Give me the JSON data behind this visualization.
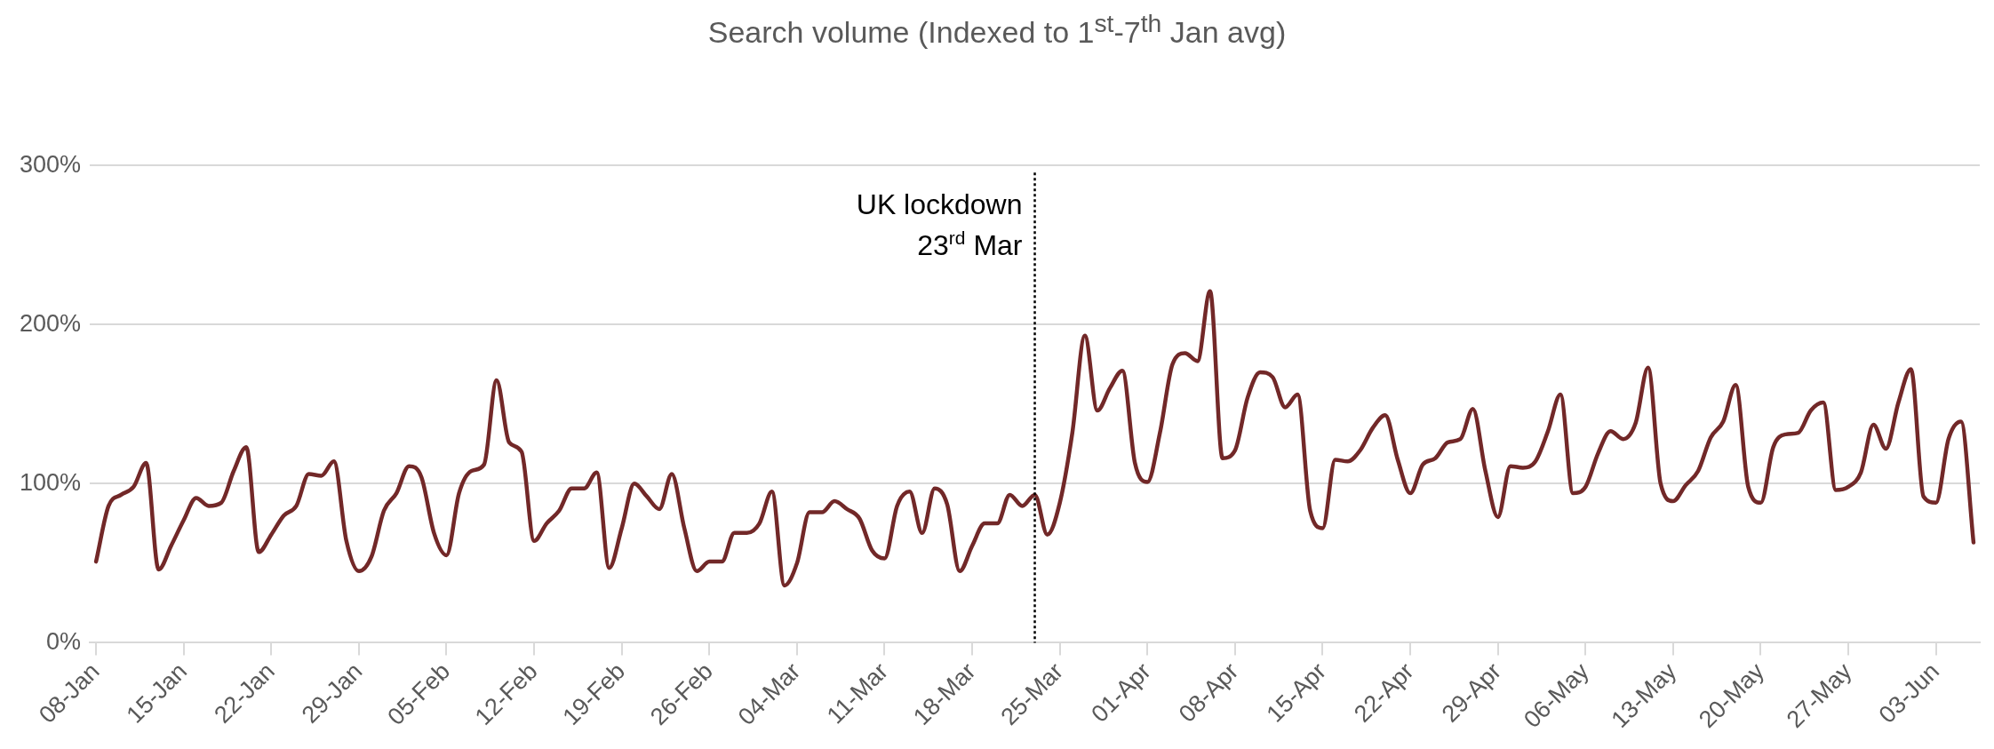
{
  "chart_data": {
    "type": "line",
    "title": "Search volume (Indexed to 1$^{st}$-7$^{th}$ Jan avg)",
    "x": [
      "--01-08",
      "--01-09",
      "--01-10",
      "--01-11",
      "--01-12",
      "--01-13",
      "--01-14",
      "--01-15",
      "--01-16",
      "--01-17",
      "--01-18",
      "--01-19",
      "--01-20",
      "--01-21",
      "--01-22",
      "--01-23",
      "--01-24",
      "--01-25",
      "--01-26",
      "--01-27",
      "--01-28",
      "--01-29",
      "--01-30",
      "--01-31",
      "--02-01",
      "--02-02",
      "--02-03",
      "--02-04",
      "--02-05",
      "--02-06",
      "--02-07",
      "--02-08",
      "--02-09",
      "--02-10",
      "--02-11",
      "--02-12",
      "--02-13",
      "--02-14",
      "--02-15",
      "--02-16",
      "--02-17",
      "--02-18",
      "--02-19",
      "--02-20",
      "--02-21",
      "--02-22",
      "--02-23",
      "--02-24",
      "--02-25",
      "--02-26",
      "--02-27",
      "--02-28",
      "--02-29",
      "--03-01",
      "--03-02",
      "--03-03",
      "--03-04",
      "--03-05",
      "--03-06",
      "--03-07",
      "--03-08",
      "--03-09",
      "--03-10",
      "--03-11",
      "--03-12",
      "--03-13",
      "--03-14",
      "--03-15",
      "--03-16",
      "--03-17",
      "--03-18",
      "--03-19",
      "--03-20",
      "--03-21",
      "--03-22",
      "--03-23",
      "--03-24",
      "--03-25",
      "--03-26",
      "--03-27",
      "--03-28",
      "--03-29",
      "--03-30",
      "--03-31",
      "--04-01",
      "--04-02",
      "--04-03",
      "--04-04",
      "--04-05",
      "--04-06",
      "--04-07",
      "--04-08",
      "--04-09",
      "--04-10",
      "--04-11",
      "--04-12",
      "--04-13",
      "--04-14",
      "--04-15",
      "--04-16",
      "--04-17",
      "--04-18",
      "--04-19",
      "--04-20",
      "--04-21",
      "--04-22",
      "--04-23",
      "--04-24",
      "--04-25",
      "--04-26",
      "--04-27",
      "--04-28",
      "--04-29",
      "--04-30",
      "--05-01",
      "--05-02",
      "--05-03",
      "--05-04",
      "--05-05",
      "--05-06",
      "--05-07",
      "--05-08",
      "--05-09",
      "--05-10",
      "--05-11",
      "--05-12",
      "--05-13",
      "--05-14",
      "--05-15",
      "--05-16",
      "--05-17",
      "--05-18",
      "--05-19",
      "--05-20",
      "--05-21",
      "--05-22",
      "--05-23",
      "--05-24",
      "--05-25",
      "--05-26",
      "--05-27",
      "--05-28",
      "--05-29",
      "--05-30",
      "--05-31",
      "--06-01",
      "--06-02",
      "--06-03",
      "--06-04",
      "--06-05",
      "--06-06"
    ],
    "series": [
      {
        "color": "#722828",
        "values": [
          51,
          86,
          93,
          98,
          113,
          46,
          61,
          77,
          91,
          86,
          88,
          108,
          123,
          57,
          68,
          80,
          86,
          106,
          105,
          114,
          64,
          45,
          54,
          83,
          94,
          111,
          104,
          69,
          55,
          94,
          108,
          112,
          165,
          126,
          120,
          64,
          75,
          83,
          97,
          97,
          107,
          47,
          72,
          100,
          92,
          84,
          106,
          72,
          45,
          51,
          51,
          69,
          69,
          75,
          95,
          36,
          50,
          82,
          82,
          89,
          84,
          78,
          58,
          53,
          86,
          95,
          69,
          97,
          87,
          45,
          61,
          75,
          75,
          93,
          86,
          93,
          68,
          88,
          132,
          193,
          146,
          160,
          171,
          113,
          101,
          132,
          175,
          182,
          177,
          221,
          116,
          121,
          154,
          170,
          167,
          148,
          156,
          83,
          72,
          115,
          114,
          121,
          135,
          143,
          115,
          94,
          112,
          116,
          126,
          128,
          147,
          108,
          79,
          111,
          110,
          114,
          133,
          156,
          94,
          98,
          119,
          133,
          128,
          138,
          173,
          100,
          89,
          99,
          108,
          129,
          139,
          162,
          98,
          88,
          123,
          131,
          132,
          146,
          151,
          96,
          98,
          107,
          137,
          122,
          151,
          172,
          92,
          88,
          128,
          139,
          63
        ]
      }
    ],
    "xlim": [
      "--01-07T12:00",
      "--06-06T12:00"
    ],
    "xticks": [
      {
        "value": "--01-08",
        "label": "08-Jan"
      },
      {
        "value": "--01-15",
        "label": "15-Jan"
      },
      {
        "value": "--01-22",
        "label": "22-Jan"
      },
      {
        "value": "--01-29",
        "label": "29-Jan"
      },
      {
        "value": "--02-05",
        "label": "05-Feb"
      },
      {
        "value": "--02-12",
        "label": "12-Feb"
      },
      {
        "value": "--02-19",
        "label": "19-Feb"
      },
      {
        "value": "--02-26",
        "label": "26-Feb"
      },
      {
        "value": "--03-04",
        "label": "04-Mar"
      },
      {
        "value": "--03-11",
        "label": "11-Mar"
      },
      {
        "value": "--03-18",
        "label": "18-Mar"
      },
      {
        "value": "--03-25",
        "label": "25-Mar"
      },
      {
        "value": "--04-01",
        "label": "01-Apr"
      },
      {
        "value": "--04-08",
        "label": "08-Apr"
      },
      {
        "value": "--04-15",
        "label": "15-Apr"
      },
      {
        "value": "--04-22",
        "label": "22-Apr"
      },
      {
        "value": "--04-29",
        "label": "29-Apr"
      },
      {
        "value": "--05-06",
        "label": "06-May"
      },
      {
        "value": "--05-13",
        "label": "13-May"
      },
      {
        "value": "--05-20",
        "label": "20-May"
      },
      {
        "value": "--05-27",
        "label": "27-May"
      },
      {
        "value": "--06-03",
        "label": "03-Jun"
      }
    ],
    "ylim": [
      0,
      300
    ],
    "yticks": [
      {
        "value": 0,
        "label": "0%"
      },
      {
        "value": 100,
        "label": "100%"
      },
      {
        "value": 200,
        "label": "200%"
      },
      {
        "value": 300,
        "label": "300%"
      }
    ],
    "ref_lines": [
      {
        "axis": "x",
        "value": "--03-23",
        "label": "UK lockdown\n23$^{rd}$ Mar",
        "color": "#000000",
        "line_style": "dotted"
      }
    ],
    "grid": "y"
  }
}
